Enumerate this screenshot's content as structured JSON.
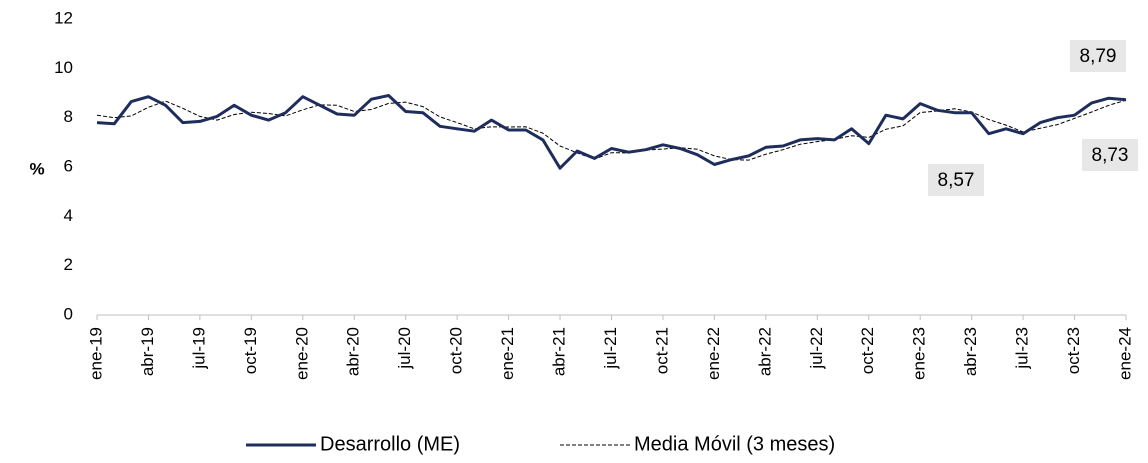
{
  "chart_data": {
    "type": "line",
    "y_label": "%",
    "categories": [
      "ene-19",
      null,
      null,
      "abr-19",
      null,
      null,
      "jul-19",
      null,
      null,
      "oct-19",
      null,
      null,
      "ene-20",
      null,
      null,
      "abr-20",
      null,
      null,
      "jul-20",
      null,
      null,
      "oct-20",
      null,
      null,
      "ene-21",
      null,
      null,
      "abr-21",
      null,
      null,
      "jul-21",
      null,
      null,
      "oct-21",
      null,
      null,
      "ene-22",
      null,
      null,
      "abr-22",
      null,
      null,
      "jul-22",
      null,
      null,
      "oct-22",
      null,
      null,
      "ene-23",
      null,
      null,
      "abr-23",
      null,
      null,
      "jul-23",
      null,
      null,
      "oct-23",
      null,
      null,
      "ene-24"
    ],
    "series": [
      {
        "name": "Desarrollo (ME)",
        "color": "#1f2d5c",
        "style": "solid",
        "values": [
          7.8,
          7.75,
          8.65,
          8.85,
          8.5,
          7.8,
          7.85,
          8.05,
          8.5,
          8.1,
          7.9,
          8.2,
          8.85,
          8.5,
          8.15,
          8.1,
          8.75,
          8.9,
          8.25,
          8.2,
          7.65,
          7.55,
          7.45,
          7.9,
          7.5,
          7.5,
          7.1,
          5.95,
          6.65,
          6.35,
          6.75,
          6.6,
          6.7,
          6.9,
          6.75,
          6.5,
          6.1,
          6.3,
          6.45,
          6.8,
          6.85,
          7.1,
          7.15,
          7.1,
          7.55,
          6.95,
          8.1,
          7.95,
          8.57,
          8.3,
          8.2,
          8.2,
          7.35,
          7.55,
          7.35,
          7.8,
          8.0,
          8.1,
          8.6,
          8.79,
          8.73
        ]
      },
      {
        "name": "Media Móvil (3 meses)",
        "color": "#000000",
        "style": "dashed",
        "values": [
          8.1,
          8.0,
          8.07,
          8.42,
          8.67,
          8.38,
          8.05,
          7.9,
          8.13,
          8.22,
          8.17,
          8.07,
          8.32,
          8.52,
          8.5,
          8.25,
          8.33,
          8.58,
          8.63,
          8.45,
          8.03,
          7.8,
          7.55,
          7.63,
          7.62,
          7.63,
          7.37,
          6.85,
          6.57,
          6.32,
          6.58,
          6.57,
          6.68,
          6.73,
          6.78,
          6.72,
          6.45,
          6.3,
          6.28,
          6.52,
          6.7,
          6.92,
          7.03,
          7.12,
          7.27,
          7.2,
          7.53,
          7.67,
          8.21,
          8.27,
          8.36,
          8.23,
          7.92,
          7.7,
          7.42,
          7.57,
          7.72,
          7.97,
          8.23,
          8.5,
          8.71
        ]
      }
    ],
    "annotations": [
      "8,79",
      "8,57",
      "8,73"
    ],
    "ylim": [
      0,
      12
    ],
    "yticks": [
      0,
      2,
      4,
      6,
      8,
      10,
      12
    ],
    "grid": false,
    "legend": "bottom"
  }
}
